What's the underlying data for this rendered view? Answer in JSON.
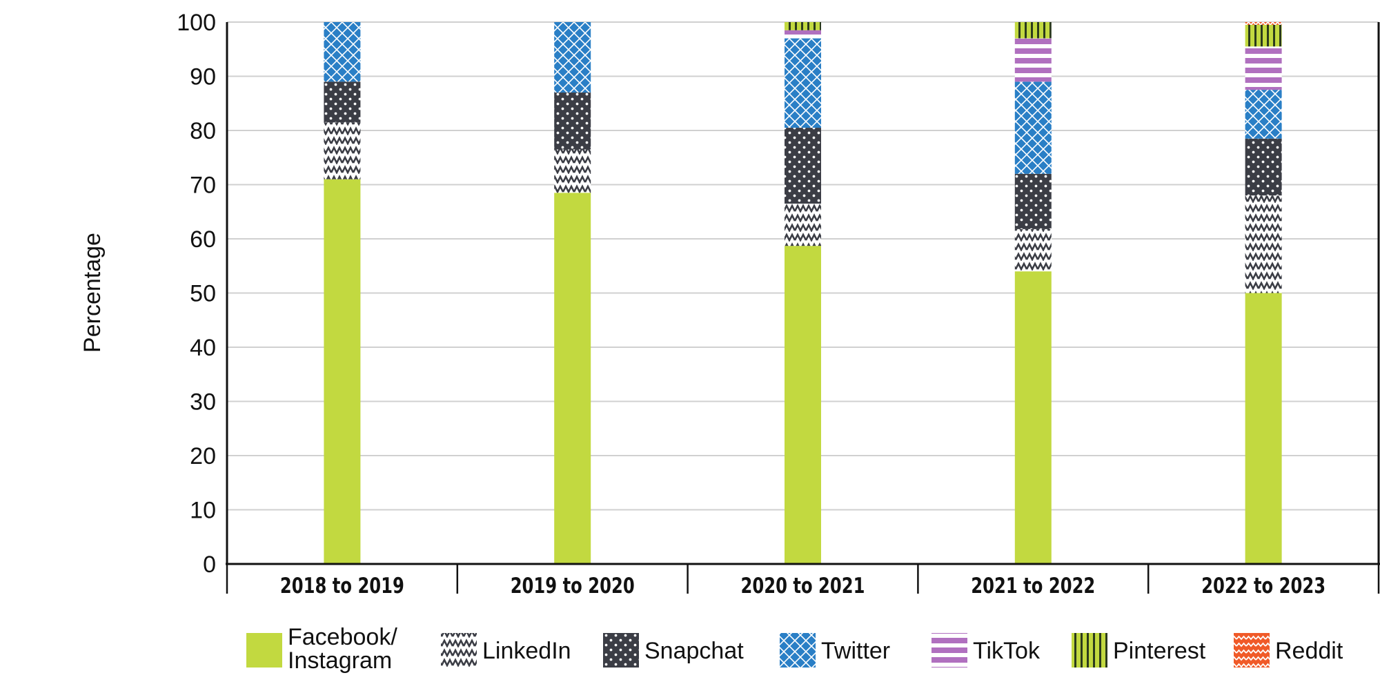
{
  "chart_data": {
    "type": "bar",
    "stacked": true,
    "title": "",
    "xlabel": "",
    "ylabel": "Percentage",
    "ylim": [
      0,
      100
    ],
    "yticks": [
      0,
      10,
      20,
      30,
      40,
      50,
      60,
      70,
      80,
      90,
      100
    ],
    "grid": true,
    "legend_position": "bottom",
    "categories": [
      "2018 to 2019",
      "2019 to 2020",
      "2020 to 2021",
      "2021 to 2022",
      "2022 to 2023"
    ],
    "series": [
      {
        "name": "Facebook/ Instagram",
        "legend_lines": [
          "Facebook/",
          "Instagram"
        ],
        "color": "#c2d940",
        "pattern": "solid",
        "values": [
          71,
          68.5,
          58.7,
          54,
          50
        ]
      },
      {
        "name": "LinkedIn",
        "legend_lines": [
          "LinkedIn"
        ],
        "color": "#3b3d45",
        "pattern": "zigzag",
        "values": [
          10.5,
          8,
          7.8,
          7.8,
          18
        ]
      },
      {
        "name": "Snapchat",
        "legend_lines": [
          "Snapchat"
        ],
        "color": "#3b3d45",
        "pattern": "dots",
        "values": [
          7.5,
          10.5,
          14,
          10.2,
          10.5
        ]
      },
      {
        "name": "Twitter",
        "legend_lines": [
          "Twitter"
        ],
        "color": "#2a7fc6",
        "pattern": "crosshatch",
        "values": [
          11,
          13,
          16.5,
          17,
          9
        ]
      },
      {
        "name": "TikTok",
        "legend_lines": [
          "TikTok"
        ],
        "color": "#b070bf",
        "pattern": "stripes",
        "values": [
          0,
          0,
          1.5,
          8,
          8
        ]
      },
      {
        "name": "Pinterest",
        "legend_lines": [
          "Pinterest"
        ],
        "color": "#c2d940",
        "pattern": "vlines",
        "values": [
          0,
          0,
          1.5,
          3,
          4
        ]
      },
      {
        "name": "Reddit",
        "legend_lines": [
          "Reddit"
        ],
        "color": "#f05a28",
        "pattern": "waves",
        "values": [
          0,
          0,
          0,
          0,
          0.5
        ]
      }
    ]
  }
}
